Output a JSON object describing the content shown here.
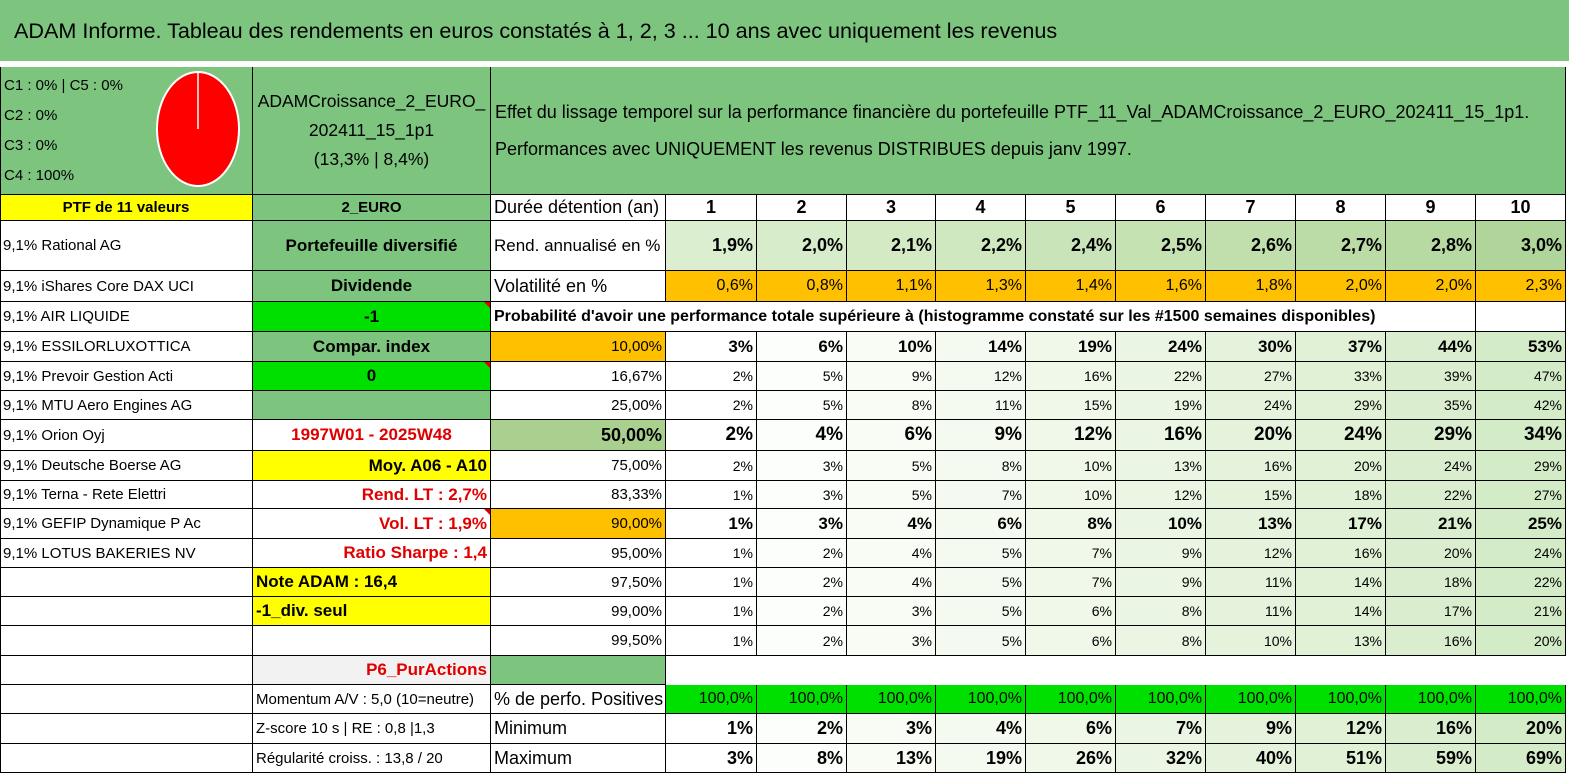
{
  "title": "ADAM Informe. Tableau des rendements en euros constatés à 1, 2, 3 ... 10 ans avec uniquement les revenus",
  "allocation": [
    "C1 : 0% | C5 : 0%",
    "C2 : 0%",
    "C3 : 0%",
    "C4 : 100%"
  ],
  "colors": {
    "header_green": "#7dc57f",
    "yellow": "#ffff00",
    "bright_green": "#00e000",
    "orange": "#ffc000",
    "pie_red": "#ff0000",
    "red_text": "#e00000"
  },
  "portfolio": {
    "name": [
      "ADAMCroissance_2_EURO_",
      "202411_15_1p1",
      "(13,3% | 8,4%)"
    ],
    "description": [
      "Effet du lissage temporel sur la performance financière du portefeuille PTF_11_Val_ADAMCroissance_2_EURO_202411_15_1p1.",
      "Performances avec UNIQUEMENT les revenus DISTRIBUES depuis janv 1997."
    ],
    "ptf_label": "PTF de 11 valeurs",
    "currency": "2_EURO"
  },
  "holdings": [
    "9,1% Rational AG",
    "9,1% iShares Core DAX UCI",
    "9,1% AIR LIQUIDE",
    "9,1% ESSILORLUXOTTICA",
    "9,1% Prevoir Gestion Acti",
    "9,1% MTU Aero Engines AG",
    "9,1% Orion Oyj",
    "9,1% Deutsche Boerse AG",
    "9,1% Terna - Rete Elettri",
    "9,1% GEFIP Dynamique P Ac",
    "9,1% LOTUS BAKERIES NV"
  ],
  "info": {
    "diversified": "Portefeuille diversifié",
    "dividend": "Dividende",
    "dividend_value": "-1",
    "compar": "Compar. index",
    "compar_value": "0",
    "period": "1997W01 - 2025W48",
    "moy": "Moy. A06 - A10",
    "rend_lt": "Rend. LT : 2,7%",
    "vol_lt": "Vol. LT : 1,9%",
    "sharpe": "Ratio Sharpe : 1,4",
    "note": "Note ADAM : 16,4",
    "div_seul": "-1_div. seul",
    "p6": "P6_PurActions",
    "momentum": "Momentum A/V : 5,0 (10=neutre)",
    "zscore": "Z-score 10 s | RE : 0,8 |1,3",
    "regularite": "Régularité croiss. : 13,8 / 20"
  },
  "table": {
    "duration_label": "Durée détention (an)",
    "years": [
      "1",
      "2",
      "3",
      "4",
      "5",
      "6",
      "7",
      "8",
      "9",
      "10"
    ],
    "rend_label": "Rend. annualisé en %",
    "rend": [
      "1,9%",
      "2,0%",
      "2,1%",
      "2,2%",
      "2,4%",
      "2,5%",
      "2,6%",
      "2,7%",
      "2,8%",
      "3,0%"
    ],
    "vol_label": "Volatilité en %",
    "vol": [
      "0,6%",
      "0,8%",
      "1,1%",
      "1,3%",
      "1,4%",
      "1,6%",
      "1,8%",
      "2,0%",
      "2,0%",
      "2,3%"
    ],
    "prob_label": "Probabilité d'avoir une performance totale supérieure à (histogramme constaté sur les #1500 semaines disponibles)",
    "prob_rows": [
      {
        "p": "10,00%",
        "v": [
          "3%",
          "6%",
          "10%",
          "14%",
          "19%",
          "24%",
          "30%",
          "37%",
          "44%",
          "53%"
        ]
      },
      {
        "p": "16,67%",
        "v": [
          "2%",
          "5%",
          "9%",
          "12%",
          "16%",
          "22%",
          "27%",
          "33%",
          "39%",
          "47%"
        ]
      },
      {
        "p": "25,00%",
        "v": [
          "2%",
          "5%",
          "8%",
          "11%",
          "15%",
          "19%",
          "24%",
          "29%",
          "35%",
          "42%"
        ]
      },
      {
        "p": "50,00%",
        "v": [
          "2%",
          "4%",
          "6%",
          "9%",
          "12%",
          "16%",
          "20%",
          "24%",
          "29%",
          "34%"
        ]
      },
      {
        "p": "75,00%",
        "v": [
          "2%",
          "3%",
          "5%",
          "8%",
          "10%",
          "13%",
          "16%",
          "20%",
          "24%",
          "29%"
        ]
      },
      {
        "p": "83,33%",
        "v": [
          "1%",
          "3%",
          "5%",
          "7%",
          "10%",
          "12%",
          "15%",
          "18%",
          "22%",
          "27%"
        ]
      },
      {
        "p": "90,00%",
        "v": [
          "1%",
          "3%",
          "4%",
          "6%",
          "8%",
          "10%",
          "13%",
          "17%",
          "21%",
          "25%"
        ]
      },
      {
        "p": "95,00%",
        "v": [
          "1%",
          "2%",
          "4%",
          "5%",
          "7%",
          "9%",
          "12%",
          "16%",
          "20%",
          "24%"
        ]
      },
      {
        "p": "97,50%",
        "v": [
          "1%",
          "2%",
          "4%",
          "5%",
          "7%",
          "9%",
          "11%",
          "14%",
          "18%",
          "22%"
        ]
      },
      {
        "p": "99,00%",
        "v": [
          "1%",
          "2%",
          "3%",
          "5%",
          "6%",
          "8%",
          "11%",
          "14%",
          "17%",
          "21%"
        ]
      },
      {
        "p": "99,50%",
        "v": [
          "1%",
          "2%",
          "3%",
          "5%",
          "6%",
          "8%",
          "10%",
          "13%",
          "16%",
          "20%"
        ]
      }
    ],
    "pos_label": "% de perfo. Positives",
    "pos": [
      "100,0%",
      "100,0%",
      "100,0%",
      "100,0%",
      "100,0%",
      "100,0%",
      "100,0%",
      "100,0%",
      "100,0%",
      "100,0%"
    ],
    "min_label": "Minimum",
    "min": [
      "1%",
      "2%",
      "3%",
      "4%",
      "6%",
      "7%",
      "9%",
      "12%",
      "16%",
      "20%"
    ],
    "max_label": "Maximum",
    "max": [
      "3%",
      "8%",
      "13%",
      "19%",
      "26%",
      "32%",
      "40%",
      "51%",
      "59%",
      "69%"
    ]
  }
}
